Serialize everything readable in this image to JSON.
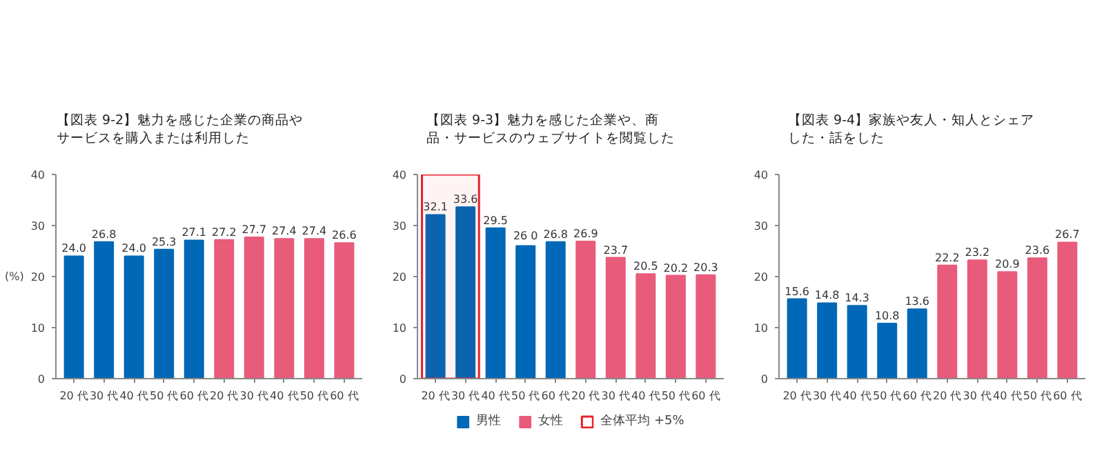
{
  "chart_data": [
    {
      "type": "bar",
      "title": "【図表 9-2】魅力を感じた企業の商品やサービスを購入または利用した",
      "ylabel": "(%)",
      "categories": [
        "20 代",
        "30 代",
        "40 代",
        "50 代",
        "60 代",
        "20 代",
        "30 代",
        "40 代",
        "50 代",
        "60 代"
      ],
      "ylim": [
        0,
        40
      ],
      "yticks": [
        0,
        10,
        20,
        30,
        40
      ],
      "grid": false,
      "legend": false,
      "series": [
        {
          "color": "#0068b7",
          "values": [
            24.0,
            26.8,
            24.0,
            25.3,
            27.1,
            null,
            null,
            null,
            null,
            null
          ],
          "value_labels": [
            "24.0",
            "26.8",
            "24.0",
            "25.3",
            "27.1",
            null,
            null,
            null,
            null,
            null
          ]
        },
        {
          "color": "#e95b7b",
          "values": [
            null,
            null,
            null,
            null,
            null,
            27.2,
            27.7,
            27.4,
            27.4,
            26.6
          ],
          "value_labels": [
            null,
            null,
            null,
            null,
            null,
            "27.2",
            "27.7",
            "27.4",
            "27.4",
            "26.6"
          ]
        }
      ]
    },
    {
      "type": "bar",
      "title": "【図表 9-3】魅力を感じた企業や、商品・サービスのウェブサイトを閲覧した",
      "categories": [
        "20 代",
        "30 代",
        "40 代",
        "50 代",
        "60 代",
        "20 代",
        "30 代",
        "40 代",
        "50 代",
        "60 代"
      ],
      "ylim": [
        0,
        40
      ],
      "yticks": [
        0,
        10,
        20,
        30,
        40
      ],
      "grid": false,
      "legend": "bottom",
      "bands": [
        {
          "axis": "x",
          "from": "20 代",
          "to": "30 代",
          "label": "全体平均 +5%",
          "color": "#e8202a"
        }
      ],
      "series": [
        {
          "name": "男性",
          "color": "#0068b7",
          "values": [
            32.1,
            33.6,
            29.5,
            26.0,
            26.8,
            null,
            null,
            null,
            null,
            null
          ],
          "value_labels": [
            "32.1",
            "33.6",
            "29.5",
            "26 0",
            "26.8",
            null,
            null,
            null,
            null,
            null
          ]
        },
        {
          "name": "女性",
          "color": "#e95b7b",
          "values": [
            null,
            null,
            null,
            null,
            null,
            26.9,
            23.7,
            20.5,
            20.2,
            20.3
          ],
          "value_labels": [
            null,
            null,
            null,
            null,
            null,
            "26.9",
            "23.7",
            "20.5",
            "20.2",
            "20.3"
          ]
        }
      ]
    },
    {
      "type": "bar",
      "title": "【図表 9-4】家族や友人・知人とシェアした・話をした",
      "categories": [
        "20 代",
        "30 代",
        "40 代",
        "50 代",
        "60 代",
        "20 代",
        "30 代",
        "40 代",
        "50 代",
        "60 代"
      ],
      "ylim": [
        0,
        40
      ],
      "yticks": [
        0,
        10,
        20,
        30,
        40
      ],
      "grid": false,
      "legend": false,
      "series": [
        {
          "color": "#0068b7",
          "values": [
            15.6,
            14.8,
            14.3,
            10.8,
            13.6,
            null,
            null,
            null,
            null,
            null
          ],
          "value_labels": [
            "15.6",
            "14.8",
            "14.3",
            "10.8",
            "13.6",
            null,
            null,
            null,
            null,
            null
          ]
        },
        {
          "color": "#e95b7b",
          "values": [
            null,
            null,
            null,
            null,
            null,
            22.2,
            23.2,
            20.9,
            23.6,
            26.7
          ],
          "value_labels": [
            null,
            null,
            null,
            null,
            null,
            "22.2",
            "23.2",
            "20.9",
            "23.6",
            "26.7"
          ]
        }
      ]
    }
  ]
}
